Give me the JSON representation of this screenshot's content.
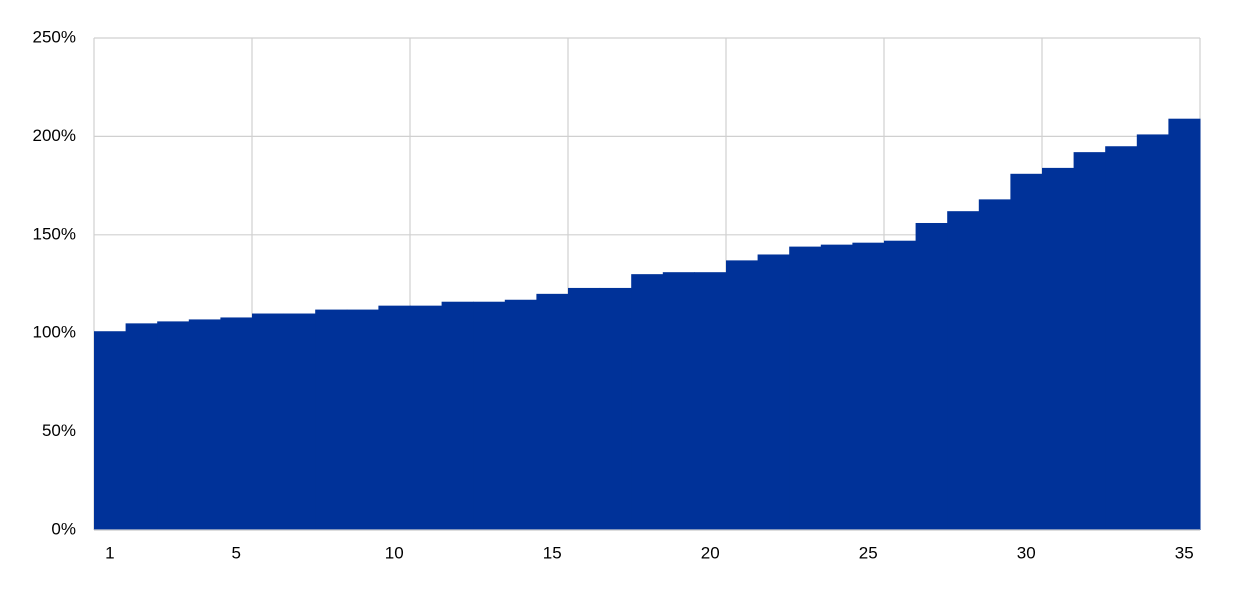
{
  "chart_data": {
    "type": "bar",
    "categories": [
      "1",
      null,
      null,
      null,
      "5",
      null,
      null,
      null,
      null,
      "10",
      null,
      null,
      null,
      null,
      "15",
      null,
      null,
      null,
      null,
      "20",
      null,
      null,
      null,
      null,
      "25",
      null,
      null,
      null,
      null,
      "30",
      null,
      null,
      null,
      null,
      "35"
    ],
    "values": [
      101,
      105,
      106,
      107,
      108,
      110,
      110,
      112,
      112,
      114,
      114,
      116,
      116,
      117,
      120,
      123,
      123,
      130,
      131,
      131,
      137,
      140,
      144,
      145,
      146,
      147,
      156,
      162,
      168,
      181,
      184,
      192,
      195,
      201,
      209
    ],
    "color": "#003299",
    "ylim": [
      0,
      250
    ],
    "yticks": [
      {
        "value": 0,
        "label": "0%"
      },
      {
        "value": 50,
        "label": "50%"
      },
      {
        "value": 100,
        "label": "100%"
      },
      {
        "value": 150,
        "label": "150%"
      },
      {
        "value": 200,
        "label": "200%"
      },
      {
        "value": 250,
        "label": "250%"
      }
    ],
    "grid": true
  }
}
